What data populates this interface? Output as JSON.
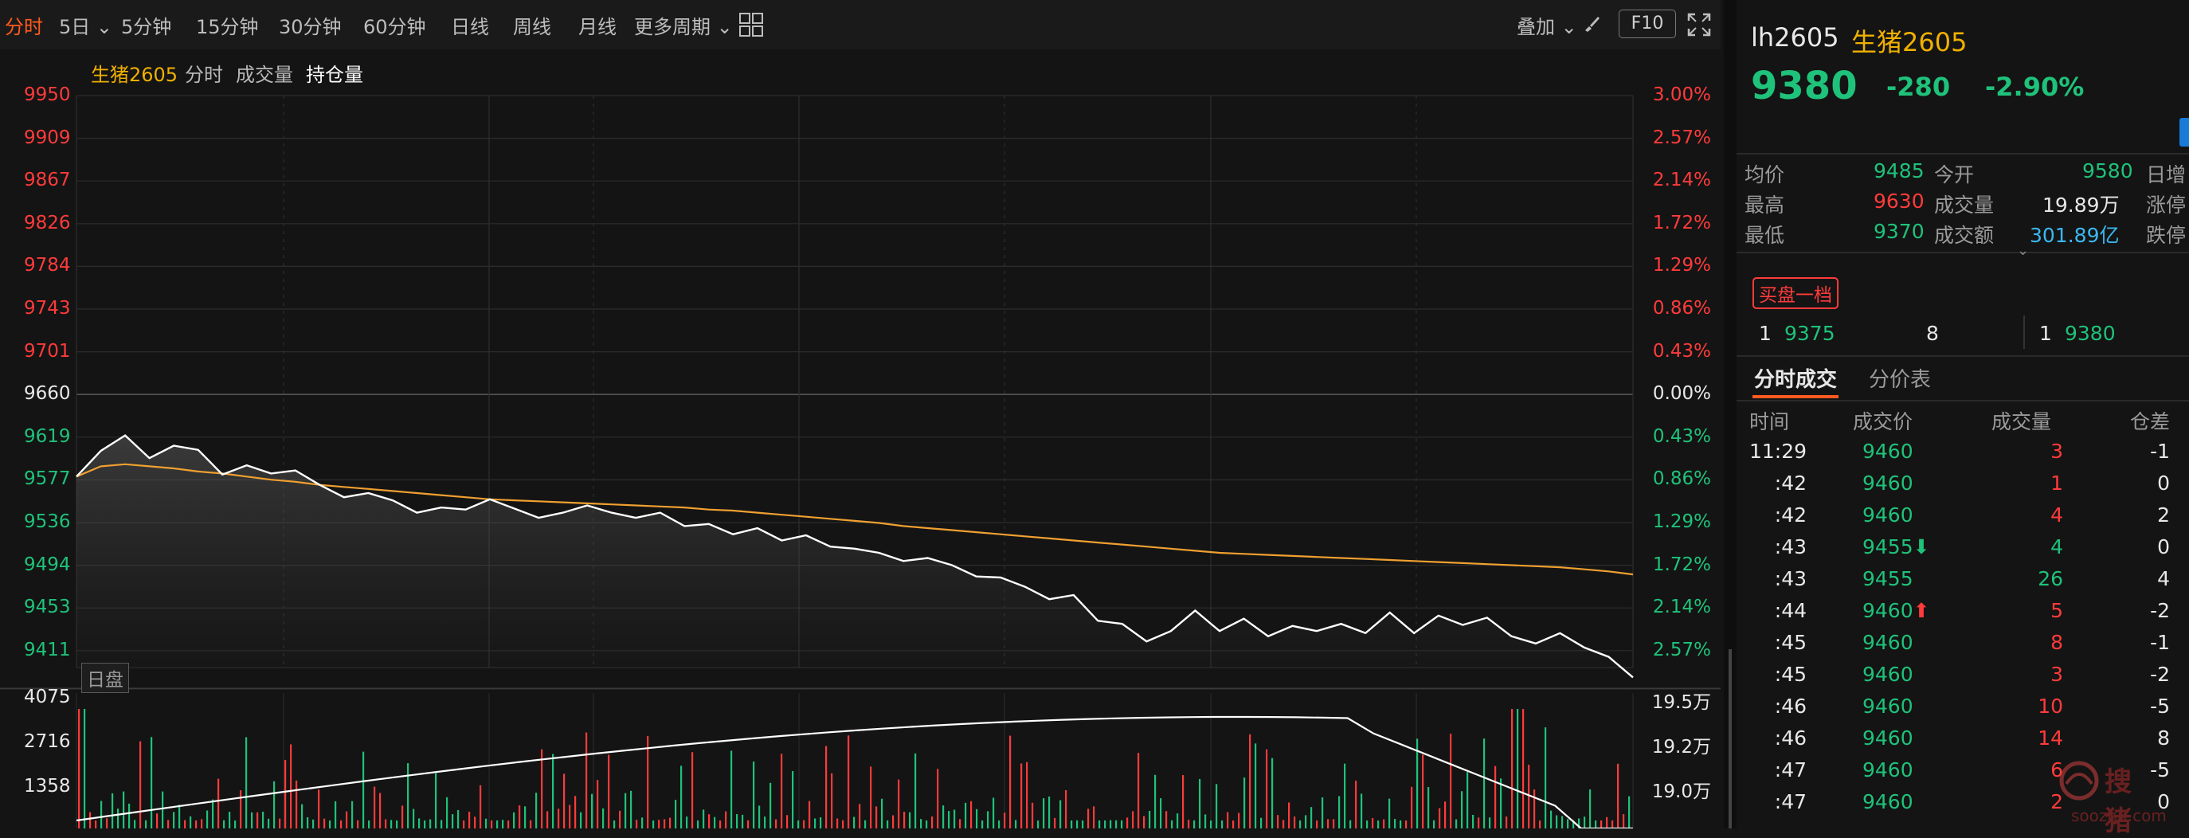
{
  "toolbar": {
    "periods": [
      "分时",
      "5日",
      "5分钟",
      "15分钟",
      "30分钟",
      "60分钟",
      "日线",
      "周线",
      "月线",
      "更多周期"
    ],
    "overlay_label": "叠加",
    "f10_label": "F10"
  },
  "chart": {
    "legend": {
      "symbol": "生猪2605",
      "items": [
        "分时",
        "成交量",
        "持仓量"
      ]
    },
    "session_label": "日盘",
    "price_axis": [
      "9950",
      "9909",
      "9867",
      "9826",
      "9784",
      "9743",
      "9701",
      "9660",
      "9619",
      "9577",
      "9536",
      "9494",
      "9453",
      "9411"
    ],
    "pct_axis": [
      "3.00%",
      "2.57%",
      "2.14%",
      "1.72%",
      "1.29%",
      "0.86%",
      "0.43%",
      "0.00%",
      "0.43%",
      "0.86%",
      "1.29%",
      "1.72%",
      "2.14%",
      "2.57%"
    ],
    "vol_axis_left": [
      "4075",
      "2716",
      "1358"
    ],
    "oi_axis_right": [
      "19.5万",
      "19.2万",
      "19.0万"
    ],
    "colors": {
      "up": "#ff3b3b",
      "down": "#1fc27a",
      "flat": "#e8e8e8",
      "avg_line": "#f0a030",
      "price_line": "#ffffff",
      "accent": "#ff5a1f"
    }
  },
  "chart_data": {
    "type": "line",
    "title": "",
    "ylim": [
      9370,
      9950
    ],
    "prev_settle": 9660,
    "series": [
      {
        "name": "price",
        "values": [
          9580,
          9605,
          9620,
          9598,
          9610,
          9606,
          9582,
          9591,
          9583,
          9586,
          9572,
          9560,
          9564,
          9557,
          9545,
          9550,
          9548,
          9558,
          9549,
          9540,
          9545,
          9552,
          9545,
          9540,
          9545,
          9532,
          9534,
          9524,
          9530,
          9518,
          9523,
          9512,
          9510,
          9506,
          9498,
          9501,
          9494,
          9483,
          9482,
          9473,
          9461,
          9465,
          9440,
          9437,
          9420,
          9430,
          9450,
          9430,
          9442,
          9425,
          9435,
          9430,
          9437,
          9428,
          9448,
          9428,
          9445,
          9436,
          9443,
          9425,
          9418,
          9428,
          9414,
          9405,
          9385
        ]
      },
      {
        "name": "avg",
        "values": [
          9580,
          9590,
          9592,
          9590,
          9588,
          9585,
          9583,
          9580,
          9577,
          9575,
          9572,
          9570,
          9568,
          9566,
          9564,
          9562,
          9560,
          9558,
          9557,
          9556,
          9555,
          9554,
          9553,
          9552,
          9551,
          9550,
          9548,
          9547,
          9545,
          9543,
          9541,
          9539,
          9537,
          9535,
          9532,
          9530,
          9528,
          9526,
          9524,
          9522,
          9520,
          9518,
          9516,
          9514,
          9512,
          9510,
          9508,
          9506,
          9505,
          9504,
          9503,
          9502,
          9501,
          9500,
          9499,
          9498,
          9497,
          9496,
          9495,
          9494,
          9493,
          9492,
          9490,
          9488,
          9485
        ]
      }
    ]
  },
  "quote": {
    "code": "lh2605",
    "name": "生猪2605",
    "last": "9380",
    "change": "-280",
    "change_pct": "-2.90%"
  },
  "stats": [
    {
      "label": "均价",
      "value": "9485",
      "label2": "今开",
      "value2": "9580",
      "label3": "日增"
    },
    {
      "label": "最高",
      "value": "9630",
      "label2": "成交量",
      "value2": "19.89万",
      "label3": "涨停"
    },
    {
      "label": "最低",
      "value": "9370",
      "label2": "成交额",
      "value2": "301.89亿",
      "label3": "跌停"
    }
  ],
  "orderbook": {
    "title": "买盘一档",
    "bid": {
      "level": "1",
      "price": "9375",
      "qty": "8"
    },
    "ask": {
      "level": "1",
      "price": "9380"
    }
  },
  "trades": {
    "tabs": [
      "分时成交",
      "分价表"
    ],
    "headers": [
      "时间",
      "成交价",
      "成交量",
      "仓差"
    ],
    "rows": [
      {
        "time": "11:29",
        "price": "9460",
        "vol": "3",
        "oi": "-1",
        "arrow": ""
      },
      {
        "time": ":42",
        "price": "9460",
        "vol": "1",
        "oi": "0",
        "arrow": ""
      },
      {
        "time": ":42",
        "price": "9460",
        "vol": "4",
        "oi": "2",
        "arrow": ""
      },
      {
        "time": ":43",
        "price": "9455",
        "vol": "4",
        "oi": "0",
        "arrow": "down"
      },
      {
        "time": ":43",
        "price": "9455",
        "vol": "26",
        "oi": "4",
        "arrow": ""
      },
      {
        "time": ":44",
        "price": "9460",
        "vol": "5",
        "oi": "-2",
        "arrow": "up"
      },
      {
        "time": ":45",
        "price": "9460",
        "vol": "8",
        "oi": "-1",
        "arrow": ""
      },
      {
        "time": ":45",
        "price": "9460",
        "vol": "3",
        "oi": "-2",
        "arrow": ""
      },
      {
        "time": ":46",
        "price": "9460",
        "vol": "10",
        "oi": "-5",
        "arrow": ""
      },
      {
        "time": ":46",
        "price": "9460",
        "vol": "14",
        "oi": "8",
        "arrow": ""
      },
      {
        "time": ":47",
        "price": "9460",
        "vol": "6",
        "oi": "-5",
        "arrow": ""
      },
      {
        "time": ":47",
        "price": "9460",
        "vol": "2",
        "oi": "0",
        "arrow": ""
      }
    ]
  },
  "watermark": {
    "brand": "搜猪",
    "url": "soozhu.com"
  }
}
